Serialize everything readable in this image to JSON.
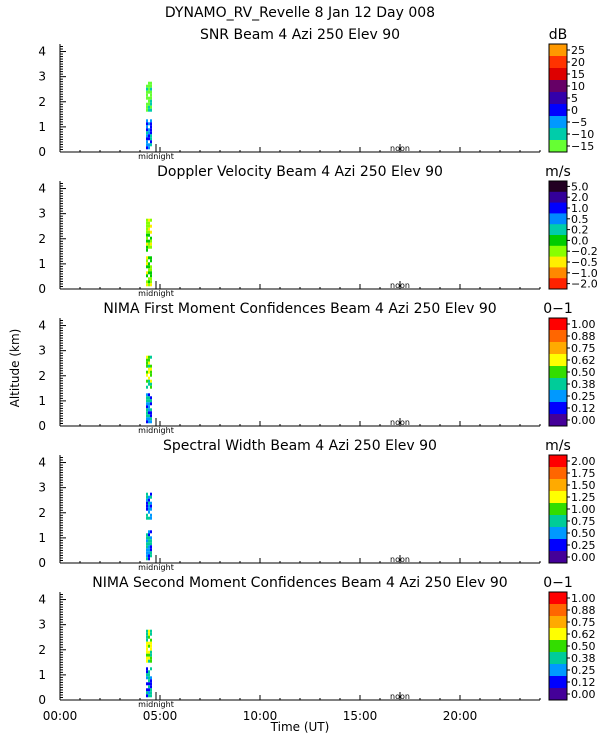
{
  "header": {
    "title_line1": "DYNAMO_RV_Revelle    8 Jan 12 Day 008"
  },
  "xaxis": {
    "label": "Time (UT)",
    "range_hours": [
      0,
      24
    ],
    "tick_labels": [
      "00:00",
      "05:00",
      "10:00",
      "15:00",
      "20:00"
    ],
    "tick_hours": [
      0,
      5,
      10,
      15,
      20
    ],
    "marker_midnight_label": "midnight",
    "marker_midnight_hour": 4.8,
    "marker_noon_label": "noon",
    "marker_noon_hour": 17.0
  },
  "yaxis": {
    "label": "Altitude (km)",
    "range_km": [
      0,
      4.3
    ],
    "ticks": [
      "0",
      "1",
      "2",
      "3",
      "4"
    ]
  },
  "chart_data": [
    {
      "type": "heatmap",
      "title": "SNR Beam 4 Azi 250 Elev 90",
      "unit": "dB",
      "colorbar_labels": [
        "25",
        "20",
        "15",
        "10",
        "5",
        "0",
        "−5",
        "−10",
        "−15"
      ],
      "colorbar_colors": [
        "#ff9900",
        "#ff3300",
        "#dd0000",
        "#660066",
        "#3300aa",
        "#0000ff",
        "#0099ff",
        "#00ccaa",
        "#66ff33"
      ],
      "data_time_hours": [
        4.3,
        4.6
      ],
      "data_altitude_km": [
        [
          0.2,
          1.3
        ],
        [
          1.6,
          2.8
        ]
      ]
    },
    {
      "type": "heatmap",
      "title": "Doppler Velocity Beam 4 Azi 250 Elev 90",
      "unit": "m/s",
      "colorbar_labels": [
        "5.0",
        "2.0",
        "1.0",
        "0.5",
        "0.2",
        "0.0",
        "−0.2",
        "−0.5",
        "−1.0",
        "−2.0"
      ],
      "colorbar_colors": [
        "#220022",
        "#330099",
        "#0000ff",
        "#0088ff",
        "#00ccaa",
        "#00cc00",
        "#88ff00",
        "#ffee00",
        "#ff8800",
        "#ff2200"
      ],
      "data_time_hours": [
        4.3,
        4.6
      ],
      "data_altitude_km": [
        [
          0.2,
          1.3
        ],
        [
          1.6,
          2.8
        ]
      ]
    },
    {
      "type": "heatmap",
      "title": "NIMA First Moment Confidences Beam 4 Azi 250 Elev 90",
      "unit": "0−1",
      "colorbar_labels": [
        "1.00",
        "0.88",
        "0.75",
        "0.62",
        "0.50",
        "0.38",
        "0.25",
        "0.12",
        "0.00"
      ],
      "colorbar_colors": [
        "#ff0000",
        "#ff6600",
        "#ffaa00",
        "#ffff00",
        "#33dd00",
        "#00cc99",
        "#0099ff",
        "#0000ff",
        "#440099"
      ],
      "data_time_hours": [
        4.3,
        4.6
      ],
      "data_altitude_km": [
        [
          0.2,
          1.3
        ],
        [
          1.6,
          2.8
        ]
      ]
    },
    {
      "type": "heatmap",
      "title": "Spectral Width Beam 4 Azi 250 Elev 90",
      "unit": "m/s",
      "colorbar_labels": [
        "2.00",
        "1.75",
        "1.50",
        "1.25",
        "1.00",
        "0.75",
        "0.50",
        "0.25",
        "0.00"
      ],
      "colorbar_colors": [
        "#ff0000",
        "#ff6600",
        "#ffaa00",
        "#ffff00",
        "#33dd00",
        "#00cc99",
        "#0099ff",
        "#0000ff",
        "#440099"
      ],
      "data_time_hours": [
        4.3,
        4.6
      ],
      "data_altitude_km": [
        [
          0.2,
          1.3
        ],
        [
          1.8,
          2.8
        ]
      ]
    },
    {
      "type": "heatmap",
      "title": "NIMA Second Moment Confidences Beam 4 Azi 250 Elev 90",
      "unit": "0−1",
      "colorbar_labels": [
        "1.00",
        "0.88",
        "0.75",
        "0.62",
        "0.50",
        "0.38",
        "0.25",
        "0.12",
        "0.00"
      ],
      "colorbar_colors": [
        "#ff0000",
        "#ff6600",
        "#ffaa00",
        "#ffff00",
        "#33dd00",
        "#00cc99",
        "#0099ff",
        "#0000ff",
        "#440099"
      ],
      "data_time_hours": [
        4.3,
        4.6
      ],
      "data_altitude_km": [
        [
          0.2,
          1.3
        ],
        [
          1.6,
          2.8
        ]
      ]
    }
  ]
}
